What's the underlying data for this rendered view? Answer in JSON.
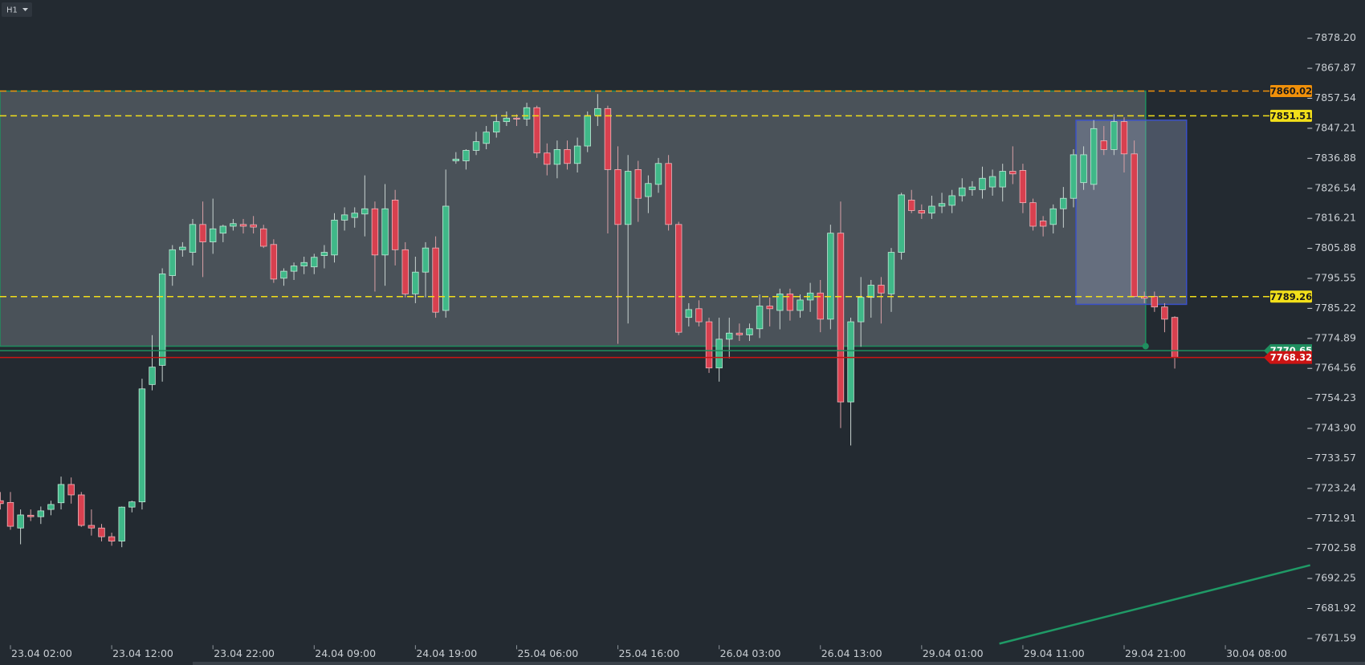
{
  "chart_data": {
    "type": "candlestick",
    "timeframe": "H1",
    "up_color": "#3fb888",
    "down_color": "#d8404f",
    "categories": [
      null,
      "23.04 02:00",
      null,
      null,
      null,
      null,
      null,
      null,
      null,
      null,
      null,
      "23.04 12:00",
      null,
      null,
      null,
      null,
      null,
      null,
      null,
      null,
      null,
      "23.04 22:00",
      null,
      null,
      null,
      null,
      null,
      null,
      null,
      null,
      null,
      "24.04 09:00",
      null,
      null,
      null,
      null,
      null,
      null,
      null,
      null,
      null,
      "24.04 19:00",
      null,
      null,
      null,
      null,
      null,
      null,
      null,
      null,
      null,
      "25.04 06:00",
      null,
      null,
      null,
      null,
      null,
      null,
      null,
      null,
      null,
      "25.04 16:00",
      null,
      null,
      null,
      null,
      null,
      null,
      null,
      null,
      null,
      "26.04 03:00",
      null,
      null,
      null,
      null,
      null,
      null,
      null,
      null,
      null,
      "26.04 13:00",
      null,
      null,
      null,
      null,
      null,
      null,
      null,
      null,
      null,
      "29.04 01:00",
      null,
      null,
      null,
      null,
      null,
      null,
      null,
      null,
      null,
      "29.04 11:00",
      null,
      null,
      null,
      null,
      null,
      null,
      null,
      null,
      null,
      "29.04 21:00",
      null,
      null,
      null,
      null,
      null,
      null,
      null,
      null,
      null,
      "30.04 08:00"
    ],
    "open": [
      7719,
      7718.4,
      7709.6,
      7714,
      7713.5,
      7716,
      7718.3,
      7724.6,
      7721,
      7710.5,
      7709.6,
      7706.6,
      7705.1,
      7716.8,
      7718.6,
      7759,
      7765.6,
      7796.5,
      7805.4,
      7804.5,
      7814.1,
      7808.1,
      7811.1,
      7813.5,
      7814.1,
      7814,
      7812.6,
      7807.2,
      7795.6,
      7798,
      7799.8,
      7799.5,
      7803.4,
      7803.6,
      7815.6,
      7816.5,
      7817.7,
      7819.5,
      7803.6,
      7822.5,
      7805.4,
      7790.2,
      7797.7,
      7806,
      7784.5,
      7836,
      7836,
      7839.6,
      7842,
      7845.9,
      7849.5,
      7850.7,
      7850.4,
      7854.3,
      7838.7,
      7834.8,
      7839.9,
      7835.1,
      7841.1,
      7851.6,
      7854,
      7833,
      7814.1,
      7833,
      7823.7,
      7827.9,
      7835.1,
      7814.1,
      7782.1,
      7785.1,
      7780.6,
      7764.7,
      7774.6,
      7776.7,
      7776.1,
      7778.2,
      7786,
      7784.5,
      7790.2,
      7784.5,
      7788.1,
      7790.5,
      7781.5,
      7811.1,
      7753,
      7780.6,
      7789,
      7793.2,
      7790.2,
      7804.5,
      7822.5,
      7818.9,
      7818,
      7820.4,
      7820.7,
      7824,
      7826.1,
      7826.1,
      7827,
      7827,
      7832.4,
      7832.7,
      7821.6,
      7815.3,
      7814.1,
      7819.5,
      7823.1,
      7828.5,
      7827.9,
      7842.9,
      7839.9,
      7849.5,
      7838.4,
      7789.3,
      7789.3,
      7785.7,
      7782.1,
      null,
      null,
      null,
      null,
      null
    ],
    "high": [
      7722,
      7722,
      7716,
      7716,
      7717,
      7719,
      7727.3,
      7727,
      7722,
      7716,
      7711,
      7708,
      7717,
      7719,
      7761,
      7776,
      7799,
      7807,
      7808,
      7816,
      7822,
      7823,
      7814,
      7816,
      7816,
      7817,
      7814,
      7809,
      7799,
      7801,
      7803,
      7804,
      7807,
      7818,
      7820,
      7820,
      7831,
      7822,
      7828,
      7826,
      7808,
      7803,
      7808,
      7810,
      7833,
      7839,
      7840,
      7846,
      7848,
      7852,
      7853,
      7852,
      7856,
      7855,
      7842,
      7843,
      7843,
      7844,
      7853,
      7859,
      7855,
      7841,
      7838,
      7836,
      7831,
      7837,
      7838,
      7815,
      7787,
      7788,
      7782,
      7782,
      7782,
      7780,
      7780,
      7790,
      7789,
      7792,
      7792,
      7790,
      7794,
      7795,
      7814,
      7822,
      7782,
      7796,
      7795,
      7796,
      7806,
      7825,
      7826,
      7821,
      7824,
      7825,
      7826,
      7830,
      7829,
      7834,
      7833,
      7835,
      7841,
      7835,
      7823,
      7817,
      7821,
      7827,
      7840,
      7841,
      7850,
      7848,
      7852,
      7851,
      7843,
      7791,
      7791,
      7787,
      7782.5,
      null,
      null,
      null,
      null,
      null
    ],
    "low": [
      7716,
      7709,
      7704,
      7712,
      7711,
      7714,
      7716,
      7718,
      7710,
      7707,
      7705,
      7703.5,
      7703,
      7715,
      7716,
      7757,
      7760,
      7793,
      7803,
      7800,
      7796,
      7804,
      7808,
      7812,
      7811,
      7811,
      7806,
      7794,
      7793,
      7795,
      7797,
      7797,
      7799,
      7801,
      7812,
      7813,
      7810,
      7791,
      7793,
      7800,
      7789,
      7787,
      7789,
      7782,
      7782,
      7835,
      7833,
      7838,
      7840,
      7844,
      7848,
      7848,
      7848,
      7837,
      7831,
      7830,
      7833,
      7832,
      7839,
      7848,
      7811,
      7773,
      7780,
      7815,
      7818,
      7825,
      7812,
      7776,
      7779,
      7779,
      7763,
      7760,
      7768,
      7774,
      7774,
      7775,
      7779,
      7778,
      7781,
      7782,
      7784,
      7777,
      7778,
      7744,
      7738,
      7772,
      7782,
      7780,
      7784,
      7802,
      7818,
      7816,
      7816,
      7818,
      7818,
      7822,
      7824,
      7823,
      7824,
      7822,
      7828,
      7818,
      7812,
      7810,
      7811,
      7813,
      7820,
      7826,
      7826,
      7838,
      7838,
      7832,
      7789,
      7787,
      7784,
      7777,
      7764.5,
      null,
      null,
      null,
      null,
      null
    ],
    "close": [
      7718,
      7710.2,
      7714.1,
      7713.5,
      7715.5,
      7717.7,
      7724.6,
      7721,
      7710.5,
      7709.6,
      7706.6,
      7705.1,
      7716.8,
      7718.6,
      7757.5,
      7765,
      7797.1,
      7805.4,
      7806.3,
      7814.1,
      7808.1,
      7812.6,
      7813.5,
      7814.4,
      7813.5,
      7813.2,
      7806.6,
      7795.3,
      7798,
      7799.8,
      7801,
      7802.8,
      7804.5,
      7815.6,
      7817.4,
      7818,
      7819.5,
      7803.6,
      7819.5,
      7805.4,
      7790.2,
      7797.7,
      7806,
      7783.9,
      7820.4,
      7836.6,
      7839.6,
      7842.6,
      7845.9,
      7849.5,
      7850.7,
      7850.4,
      7854.3,
      7838.7,
      7834.8,
      7839.9,
      7835.1,
      7841.1,
      7851.6,
      7854,
      7833,
      7814.1,
      7832.4,
      7823.1,
      7828.2,
      7835.1,
      7814.1,
      7777,
      7784.8,
      7780.6,
      7764.7,
      7774.6,
      7776.7,
      7776.1,
      7778.2,
      7786,
      7785.1,
      7790.2,
      7784.5,
      7788.1,
      7790.5,
      7781.5,
      7811.1,
      7753,
      7780.6,
      7789,
      7793.2,
      7790.5,
      7804.5,
      7824.3,
      7818.9,
      7818,
      7820.4,
      7821.3,
      7824,
      7826.7,
      7827,
      7830,
      7830.6,
      7832.4,
      7831.5,
      7821.6,
      7813.5,
      7813.5,
      7819.5,
      7823.1,
      7838.1,
      7838.1,
      7847.1,
      7839.9,
      7849.5,
      7838.4,
      7789.3,
      7788.7,
      7785.7,
      7781.5,
      7768.32,
      null,
      null,
      null,
      null,
      null
    ],
    "ylim": [
      7669.82,
      7891.37
    ],
    "yticks": [
      {
        "value": 7878.2,
        "label": "7878.20"
      },
      7867.87,
      7857.54,
      7847.21,
      7836.88,
      7826.54,
      7816.21,
      7805.88,
      7795.55,
      7785.22,
      7774.89,
      7764.56,
      7754.23,
      {
        "value": 7743.9,
        "label": "7743.90"
      },
      7733.57,
      7723.24,
      7712.91,
      7702.58,
      7692.25,
      7681.92,
      7671.59
    ],
    "zone": {
      "top": 7860.02,
      "bottom": 7772.2,
      "color": "#1f8f5f"
    },
    "box": {
      "top": 7850.0,
      "bottom": 7786.6,
      "color": "#3a50c8"
    },
    "trendline": {
      "start": 7669.8,
      "end": 7696.8,
      "color": "#1f9a66"
    },
    "levels": [
      {
        "value": 7770.65,
        "color": "#1f8f5f",
        "text_color": "#ffffff",
        "style": "solid"
      },
      {
        "value": 7860.02,
        "color": "#f0900a",
        "text_color": "#1b1b1b",
        "style": "dashed"
      },
      {
        "value": 7851.51,
        "color": "#f2df1a",
        "text_color": "#1b1b1b",
        "style": "dashed"
      },
      {
        "value": 7789.26,
        "color": "#f2df1a",
        "text_color": "#1b1b1b",
        "style": "dashed"
      },
      {
        "value": 7768.32,
        "color": "#cc1414",
        "text_color": "#ffffff",
        "style": "solid"
      }
    ]
  }
}
